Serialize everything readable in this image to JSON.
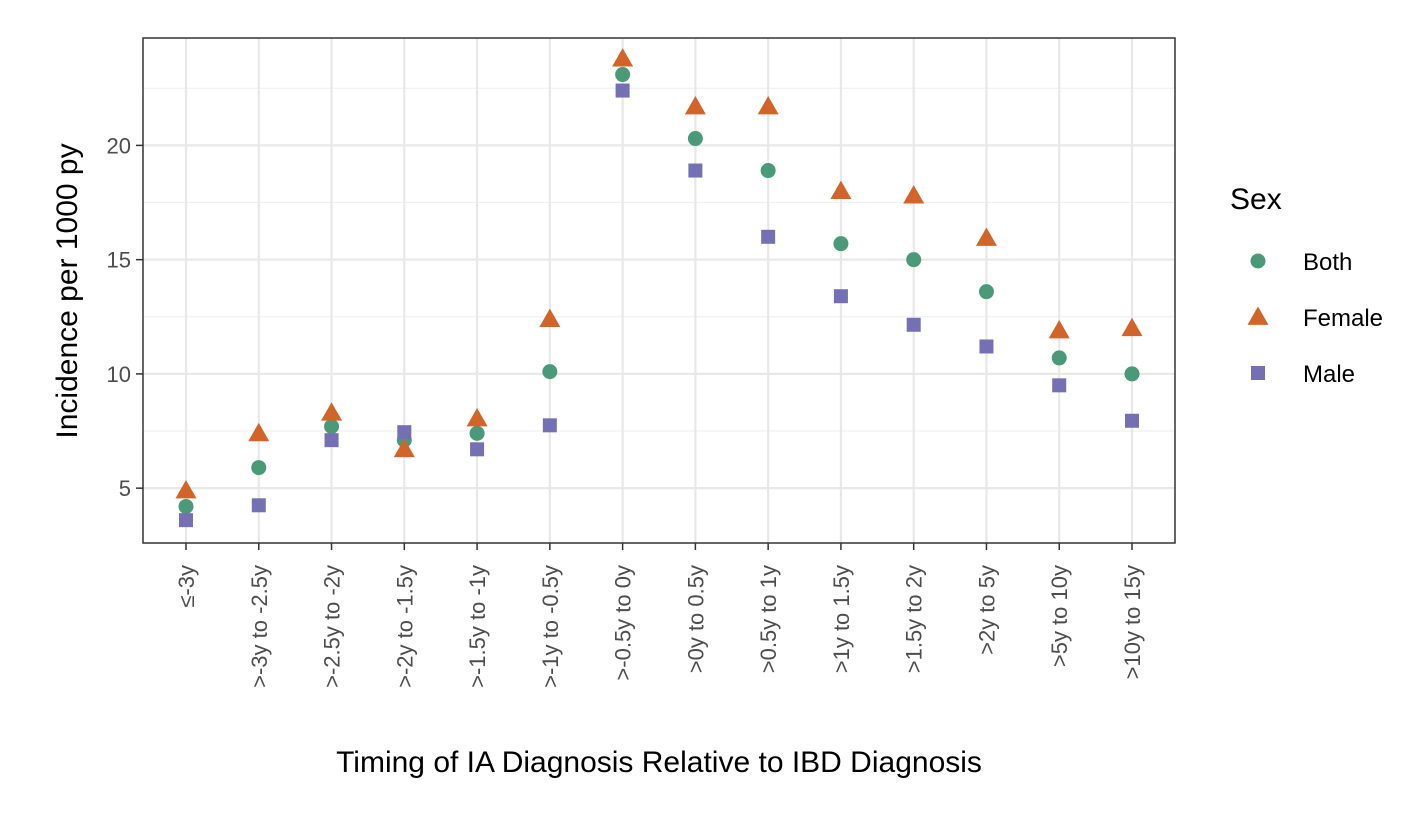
{
  "chart_data": {
    "type": "scatter",
    "title": "",
    "xlabel": "Timing of IA Diagnosis Relative to IBD Diagnosis",
    "ylabel": "Incidence per 1000 py",
    "categories": [
      "≤-3y",
      ">-3y to -2.5y",
      ">-2.5y to -2y",
      ">-2y to -1.5y",
      ">-1.5y to -1y",
      ">-1y to -0.5y",
      ">-0.5y to 0y",
      ">0y to 0.5y",
      ">0.5y to 1y",
      ">1y to 1.5y",
      ">1.5y to 2y",
      ">2y to 5y",
      ">5y to 10y",
      ">10y to 15y"
    ],
    "ylim": [
      2.6,
      24.7
    ],
    "yticks": [
      5,
      10,
      15,
      20
    ],
    "grid": true,
    "legend": {
      "title": "Sex",
      "position": "right"
    },
    "series": [
      {
        "name": "Both",
        "marker": "circle",
        "color": "#4a9a7a",
        "values": [
          4.2,
          5.9,
          7.7,
          7.1,
          7.4,
          10.1,
          23.1,
          20.3,
          18.9,
          15.7,
          15.0,
          13.6,
          10.7,
          10.0
        ]
      },
      {
        "name": "Female",
        "marker": "triangle",
        "color": "#d2642a",
        "values": [
          4.9,
          7.4,
          8.3,
          6.7,
          8.05,
          12.4,
          23.8,
          21.7,
          21.7,
          18.0,
          17.8,
          15.95,
          11.9,
          12.0
        ]
      },
      {
        "name": "Male",
        "marker": "square",
        "color": "#7570b3",
        "values": [
          3.6,
          4.25,
          7.1,
          7.45,
          6.7,
          7.75,
          22.4,
          18.9,
          16.0,
          13.4,
          12.15,
          11.2,
          9.5,
          7.95
        ]
      }
    ]
  }
}
